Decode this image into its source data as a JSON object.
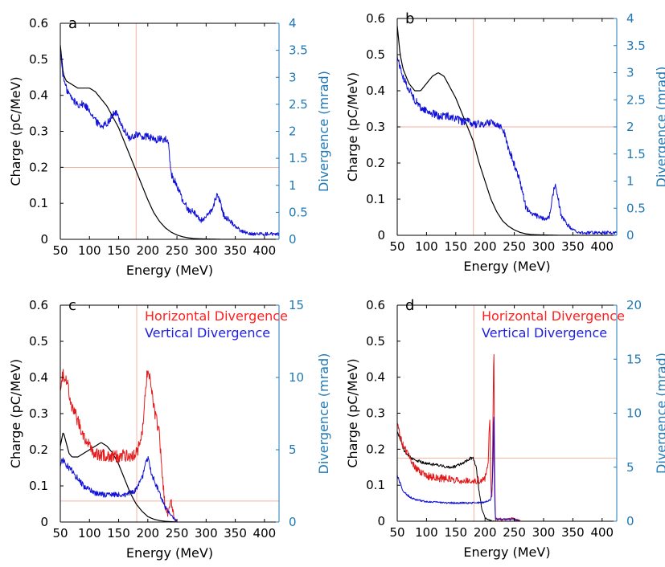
{
  "colors": {
    "black": "#000000",
    "horizontal": "#e31a1c",
    "vertical": "#1010d8",
    "right_axis": "#1f78b4",
    "guide": "#f4b2a2"
  },
  "chart_data": [
    {
      "type": "line",
      "panel": "a",
      "xlabel": "Energy (MeV)",
      "ylabel": "Charge (pC/MeV)",
      "y2label": "Divergence (mrad)",
      "xlim": [
        50,
        425
      ],
      "ylim": [
        0,
        0.6
      ],
      "y2lim": [
        0,
        4
      ],
      "xticks": [
        50,
        100,
        150,
        200,
        250,
        300,
        350,
        400
      ],
      "yticks": [
        0,
        0.1,
        0.2,
        0.3,
        0.4,
        0.5,
        0.6
      ],
      "y2ticks": [
        0,
        0.5,
        1,
        1.5,
        2,
        2.5,
        3,
        3.5,
        4
      ],
      "guides": {
        "x": 180,
        "y2": 1.33
      },
      "legend": [],
      "series": [
        {
          "axis": "left",
          "color": "black",
          "noise": 0,
          "x": [
            50,
            55,
            60,
            70,
            80,
            90,
            100,
            110,
            120,
            130,
            140,
            150,
            160,
            170,
            180,
            190,
            200,
            210,
            220,
            230,
            240,
            250,
            260,
            270,
            280,
            300,
            330,
            360,
            400,
            425
          ],
          "y": [
            0.54,
            0.46,
            0.44,
            0.43,
            0.42,
            0.42,
            0.42,
            0.41,
            0.39,
            0.37,
            0.34,
            0.31,
            0.27,
            0.23,
            0.19,
            0.15,
            0.11,
            0.075,
            0.05,
            0.032,
            0.02,
            0.012,
            0.007,
            0.004,
            0.002,
            0.001,
            0.0,
            0.0,
            0.0,
            0.0
          ]
        },
        {
          "axis": "right",
          "color": "vertical",
          "noise": 0.07,
          "x": [
            50,
            55,
            60,
            70,
            80,
            90,
            100,
            110,
            120,
            130,
            140,
            145,
            150,
            160,
            170,
            175,
            180,
            190,
            200,
            210,
            220,
            230,
            235,
            240,
            250,
            260,
            270,
            280,
            290,
            300,
            310,
            320,
            330,
            340,
            350,
            360,
            380,
            400,
            425
          ],
          "y": [
            3.5,
            3.0,
            2.8,
            2.6,
            2.5,
            2.5,
            2.4,
            2.2,
            2.1,
            2.15,
            2.3,
            2.35,
            2.25,
            2.0,
            1.85,
            1.9,
            1.95,
            1.9,
            1.9,
            1.85,
            1.85,
            1.85,
            1.8,
            1.2,
            1.0,
            0.7,
            0.55,
            0.5,
            0.35,
            0.4,
            0.55,
            0.85,
            0.45,
            0.35,
            0.25,
            0.15,
            0.1,
            0.1,
            0.1
          ]
        }
      ]
    },
    {
      "type": "line",
      "panel": "b",
      "xlabel": "Energy (MeV)",
      "ylabel": "Charge (pC/MeV)",
      "y2label": "Divergence (mrad)",
      "xlim": [
        50,
        425
      ],
      "ylim": [
        0,
        0.6
      ],
      "y2lim": [
        0,
        4
      ],
      "xticks": [
        50,
        100,
        150,
        200,
        250,
        300,
        350,
        400
      ],
      "yticks": [
        0,
        0.1,
        0.2,
        0.3,
        0.4,
        0.5,
        0.6
      ],
      "y2ticks": [
        0,
        0.5,
        1,
        1.5,
        2,
        2.5,
        3,
        3.5,
        4
      ],
      "guides": {
        "x": 180,
        "y2": 2.0
      },
      "legend": [],
      "series": [
        {
          "axis": "left",
          "color": "black",
          "noise": 0,
          "x": [
            50,
            55,
            60,
            70,
            80,
            90,
            100,
            110,
            120,
            130,
            140,
            150,
            160,
            170,
            180,
            190,
            200,
            210,
            220,
            230,
            240,
            250,
            260,
            270,
            280,
            300,
            330,
            360,
            400,
            425
          ],
          "y": [
            0.58,
            0.5,
            0.46,
            0.42,
            0.4,
            0.4,
            0.42,
            0.44,
            0.45,
            0.44,
            0.41,
            0.38,
            0.34,
            0.3,
            0.26,
            0.2,
            0.15,
            0.1,
            0.065,
            0.04,
            0.025,
            0.015,
            0.008,
            0.004,
            0.002,
            0.001,
            0.0,
            0.0,
            0.0,
            0.0
          ]
        },
        {
          "axis": "right",
          "color": "vertical",
          "noise": 0.07,
          "x": [
            50,
            55,
            60,
            70,
            80,
            90,
            100,
            110,
            120,
            130,
            140,
            150,
            160,
            170,
            180,
            190,
            200,
            210,
            220,
            230,
            240,
            250,
            260,
            270,
            280,
            290,
            300,
            310,
            320,
            330,
            340,
            350,
            360,
            380,
            400,
            425
          ],
          "y": [
            3.3,
            3.1,
            2.9,
            2.7,
            2.5,
            2.35,
            2.3,
            2.25,
            2.2,
            2.2,
            2.2,
            2.15,
            2.1,
            2.1,
            2.05,
            2.05,
            2.05,
            2.1,
            2.05,
            2.0,
            1.6,
            1.3,
            1.0,
            0.5,
            0.4,
            0.35,
            0.3,
            0.35,
            1.0,
            0.35,
            0.2,
            0.1,
            0.05,
            0.05,
            0.05,
            0.05
          ]
        }
      ]
    },
    {
      "type": "line",
      "panel": "c",
      "xlabel": "Energy (MeV)",
      "ylabel": "Charge (pC/MeV)",
      "y2label": "Divergence (mrad)",
      "xlim": [
        50,
        425
      ],
      "ylim": [
        0,
        0.6
      ],
      "y2lim": [
        0,
        15
      ],
      "xticks": [
        50,
        100,
        150,
        200,
        250,
        300,
        350,
        400
      ],
      "yticks": [
        0,
        0.1,
        0.2,
        0.3,
        0.4,
        0.5,
        0.6
      ],
      "y2ticks": [
        0,
        5,
        10,
        15
      ],
      "guides": {
        "x": 181,
        "y2": 1.45
      },
      "legend": [
        {
          "label": "Horizontal Divergence",
          "color": "horizontal"
        },
        {
          "label": "Vertical Divergence",
          "color": "vertical"
        }
      ],
      "series": [
        {
          "axis": "left",
          "color": "black",
          "noise": 0,
          "x": [
            50,
            55,
            60,
            65,
            70,
            80,
            90,
            100,
            110,
            120,
            130,
            140,
            150,
            160,
            170,
            180,
            190,
            200,
            210,
            220,
            230,
            240,
            250
          ],
          "y": [
            0.21,
            0.25,
            0.22,
            0.19,
            0.18,
            0.18,
            0.19,
            0.2,
            0.21,
            0.22,
            0.21,
            0.19,
            0.16,
            0.12,
            0.08,
            0.05,
            0.03,
            0.015,
            0.008,
            0.004,
            0.002,
            0.001,
            0.0
          ]
        },
        {
          "axis": "right",
          "color": "horizontal",
          "noise": 0.45,
          "x": [
            50,
            55,
            60,
            65,
            70,
            80,
            90,
            100,
            110,
            120,
            130,
            140,
            150,
            160,
            170,
            180,
            185,
            190,
            195,
            200,
            205,
            210,
            215,
            220,
            225,
            230,
            235,
            240,
            245,
            250
          ],
          "y": [
            9.5,
            10.2,
            10.0,
            9.0,
            8.0,
            7.0,
            6.0,
            5.2,
            4.7,
            4.6,
            4.6,
            4.6,
            4.5,
            4.6,
            4.6,
            4.7,
            5.2,
            6.0,
            8.5,
            10.8,
            9.5,
            8.0,
            7.0,
            6.0,
            3.0,
            1.0,
            0.5,
            1.5,
            0.3,
            0.0
          ]
        },
        {
          "axis": "right",
          "color": "vertical",
          "noise": 0.22,
          "x": [
            50,
            55,
            60,
            70,
            80,
            90,
            100,
            110,
            120,
            130,
            140,
            150,
            160,
            170,
            180,
            190,
            195,
            200,
            205,
            210,
            215,
            220,
            225,
            230,
            240,
            250
          ],
          "y": [
            4.0,
            4.3,
            4.0,
            3.5,
            3.0,
            2.5,
            2.2,
            2.0,
            1.9,
            1.9,
            1.9,
            1.9,
            1.9,
            2.0,
            2.2,
            3.0,
            3.8,
            4.5,
            3.5,
            3.0,
            2.5,
            2.0,
            1.5,
            1.0,
            0.5,
            0.0
          ]
        }
      ]
    },
    {
      "type": "line",
      "panel": "d",
      "xlabel": "Energy (MeV)",
      "ylabel": "Charge (pC/MeV)",
      "y2label": "Divergence (mrad)",
      "xlim": [
        50,
        425
      ],
      "ylim": [
        0,
        0.6
      ],
      "y2lim": [
        0,
        20
      ],
      "xticks": [
        50,
        100,
        150,
        200,
        250,
        300,
        350,
        400
      ],
      "yticks": [
        0,
        0.1,
        0.2,
        0.3,
        0.4,
        0.5,
        0.6
      ],
      "y2ticks": [
        0,
        5,
        10,
        15,
        20
      ],
      "guides": {
        "x": 181,
        "y2": 5.85
      },
      "legend": [
        {
          "label": "Horizontal Divergence",
          "color": "horizontal"
        },
        {
          "label": "Vertical Divergence",
          "color": "vertical"
        }
      ],
      "series": [
        {
          "axis": "left",
          "color": "black",
          "noise": 0.004,
          "x": [
            50,
            55,
            60,
            70,
            80,
            90,
            100,
            110,
            120,
            130,
            140,
            150,
            160,
            170,
            175,
            180,
            185,
            190,
            195,
            200,
            205,
            210,
            215,
            220
          ],
          "y": [
            0.25,
            0.23,
            0.2,
            0.18,
            0.17,
            0.165,
            0.16,
            0.158,
            0.155,
            0.152,
            0.15,
            0.152,
            0.16,
            0.17,
            0.175,
            0.175,
            0.15,
            0.08,
            0.03,
            0.01,
            0.005,
            0.002,
            0.0,
            0.0
          ]
        },
        {
          "axis": "right",
          "color": "horizontal",
          "noise": 0.35,
          "x": [
            50,
            55,
            60,
            70,
            80,
            90,
            100,
            120,
            140,
            160,
            180,
            190,
            200,
            205,
            208,
            210,
            212,
            214,
            215,
            216,
            217,
            218,
            220,
            230,
            240,
            250,
            260
          ],
          "y": [
            9.0,
            8.0,
            7.0,
            6.0,
            5.0,
            4.5,
            4.2,
            4.0,
            3.9,
            3.8,
            3.8,
            3.8,
            4.0,
            5.0,
            10.0,
            3.0,
            2.0,
            12.0,
            17.0,
            8.0,
            2.0,
            0.2,
            0.2,
            0.2,
            0.2,
            0.2,
            0.0
          ]
        },
        {
          "axis": "right",
          "color": "vertical",
          "noise": 0.12,
          "x": [
            50,
            55,
            60,
            70,
            80,
            90,
            100,
            120,
            140,
            160,
            180,
            200,
            205,
            210,
            212,
            214,
            215,
            216,
            217,
            218,
            220,
            230,
            240,
            250,
            260
          ],
          "y": [
            4.3,
            3.5,
            2.8,
            2.3,
            2.0,
            1.9,
            1.8,
            1.75,
            1.7,
            1.7,
            1.7,
            1.75,
            1.9,
            2.0,
            3.0,
            6.0,
            11.0,
            4.0,
            1.0,
            0.2,
            0.2,
            0.2,
            0.2,
            0.2,
            0.0
          ]
        }
      ]
    }
  ]
}
